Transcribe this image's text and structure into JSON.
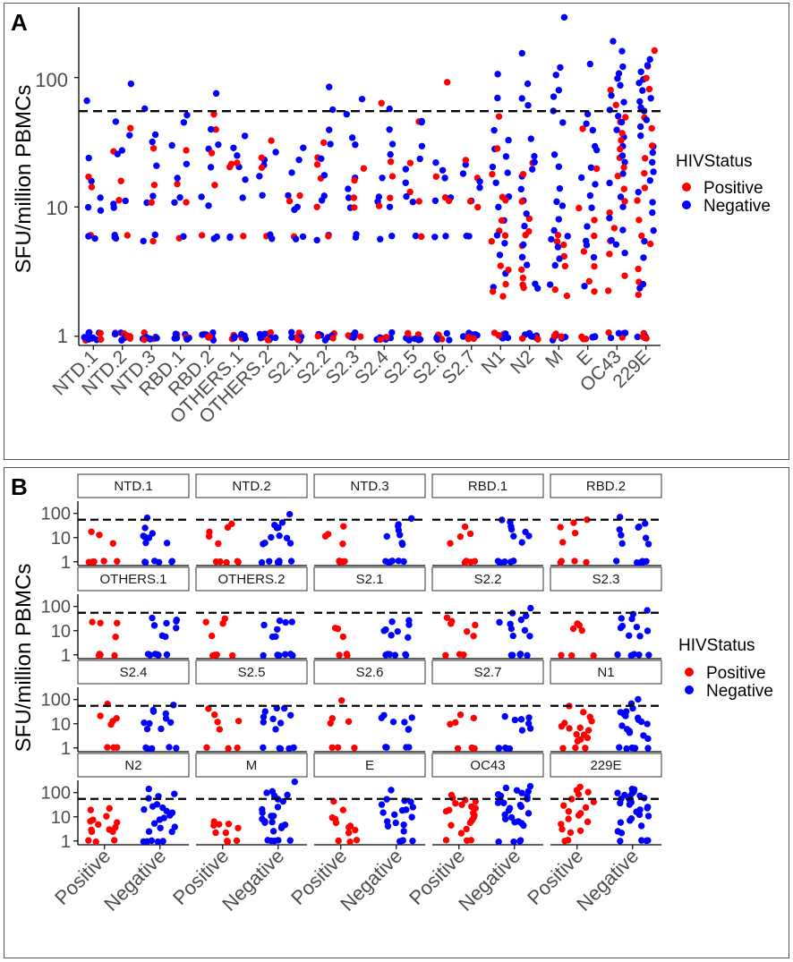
{
  "colors": {
    "positive": "#ff0000",
    "negative": "#0000ff",
    "refline": "#000000",
    "axis": "#000000",
    "strip_fill": "#ffffff",
    "strip_border": "#333333"
  },
  "panel_a": {
    "letter": "A",
    "ylabel": "SFU/million PBMCs",
    "y_ticks": [
      "1",
      "10",
      "100"
    ],
    "legend_title": "HIVStatus",
    "legend_items": [
      "Positive",
      "Negative"
    ]
  },
  "panel_b": {
    "letter": "B",
    "ylabel": "SFU/million PBMCs",
    "y_ticks": [
      "1",
      "10",
      "100"
    ],
    "x_ticks": [
      "Positive",
      "Negative"
    ],
    "legend_title": "HIVStatus",
    "legend_items": [
      "Positive",
      "Negative"
    ]
  },
  "chart_data": [
    {
      "type": "scatter",
      "panel": "A",
      "title": "",
      "xlabel": "",
      "ylabel": "SFU/million PBMCs",
      "y_scale": "log10",
      "ylim": [
        0.85,
        350
      ],
      "yticks": [
        1,
        10,
        100
      ],
      "reference_line": 55,
      "categories": [
        "NTD.1",
        "NTD.2",
        "NTD.3",
        "RBD.1",
        "RBD.2",
        "OTHERS.1",
        "OTHERS.2",
        "S2.1",
        "S2.2",
        "S2.3",
        "S2.4",
        "S2.5",
        "S2.6",
        "S2.7",
        "N1",
        "N2",
        "M",
        "E",
        "OC43",
        "229E"
      ],
      "legend": {
        "title": "HIVStatus",
        "position": "right"
      },
      "series": [
        {
          "name": "Positive",
          "points": {
            "NTD.1": [
              17,
              14,
              6,
              1,
              1,
              1,
              1,
              1
            ],
            "NTD.2": [
              40,
              16,
              11,
              27,
              6,
              1,
              1,
              1,
              1,
              1
            ],
            "NTD.3": [
              28,
              15,
              11,
              5.5,
              1,
              1,
              1,
              1
            ],
            "RBD.1": [
              27,
              15,
              11,
              5.6,
              1,
              1,
              1,
              1
            ],
            "RBD.2": [
              52,
              40,
              26,
              15,
              6,
              1,
              1,
              1,
              1
            ],
            "OTHERS.1": [
              22,
              20,
              21,
              6,
              1,
              1,
              1,
              1
            ],
            "OTHERS.2": [
              32,
              24,
              20,
              6,
              1,
              1,
              1,
              1
            ],
            "S2.1": [
              11,
              12,
              6,
              1,
              1,
              1
            ],
            "S2.2": [
              32,
              24,
              21,
              17,
              10,
              6,
              1,
              1,
              1
            ],
            "S2.3": [
              20,
              16,
              12,
              10,
              1,
              1,
              1
            ],
            "S2.4": [
              64,
              22,
              17,
              12,
              10,
              1,
              1,
              1
            ],
            "S2.5": [
              45,
              22,
              13,
              11,
              6,
              1,
              1,
              1
            ],
            "S2.6": [
              90,
              17,
              12,
              11,
              1,
              1,
              1
            ],
            "S2.7": [
              23,
              17,
              11,
              10,
              1,
              1,
              1
            ],
            "N1": [
              50,
              28,
              18,
              12,
              11,
              8,
              6.5,
              6,
              5.5,
              3.5,
              3.3,
              2.5,
              2.2,
              2.0,
              1,
              1,
              1
            ],
            "N2": [
              22,
              18,
              11,
              8,
              6.6,
              6,
              5,
              4,
              3.2,
              2.8,
              2.5,
              2.4,
              1,
              1,
              1
            ],
            "M": [
              6,
              5.5,
              5,
              4.2,
              3.5,
              2.3,
              2.1,
              1,
              1,
              1
            ],
            "E": [
              40,
              20,
              10,
              8,
              6,
              4.5,
              3.5,
              2.6,
              2.2,
              1,
              1,
              1
            ],
            "OC43": [
              80,
              60,
              50,
              45,
              38,
              32,
              28,
              24,
              20,
              17,
              14,
              11,
              9,
              7,
              5.5,
              4.3,
              3.0,
              2.2,
              1,
              1,
              1
            ],
            "229E": [
              160,
              120,
              100,
              80,
              50,
              40,
              30,
              24,
              18,
              14,
              11,
              8,
              6,
              5.2,
              3.3,
              2.6,
              2.1,
              1,
              1,
              1
            ]
          }
        },
        {
          "name": "Negative",
          "points": {
            "NTD.1": [
              66,
              24,
              16,
              12,
              10,
              9.5,
              6,
              5.6,
              1,
              1,
              1,
              1,
              1,
              1,
              1
            ],
            "NTD.2": [
              88,
              45,
              35,
              28,
              26,
              11,
              10.5,
              10,
              6,
              5.8,
              5.6,
              1,
              1,
              1,
              1,
              1,
              1
            ],
            "NTD.3": [
              57,
              37,
              32,
              21,
              12,
              11,
              6,
              5.5,
              1,
              1,
              1,
              1,
              1,
              1
            ],
            "RBD.1": [
              52,
              45,
              30,
              21,
              17,
              12,
              11,
              6,
              1,
              1,
              1,
              1,
              1,
              1
            ],
            "RBD.2": [
              76,
              40,
              30,
              28,
              20,
              12,
              10,
              6,
              5.8,
              1,
              1,
              1,
              1,
              1,
              1
            ],
            "OTHERS.1": [
              35,
              28,
              25,
              20,
              16,
              12,
              6,
              5.8,
              1,
              1,
              1,
              1,
              1,
              1
            ],
            "OTHERS.2": [
              26,
              23,
              21,
              17,
              12,
              6,
              5.8,
              1,
              1,
              1,
              1,
              1,
              1
            ],
            "S2.1": [
              28,
              23,
              18,
              12,
              10,
              9.5,
              6,
              5.6,
              1,
              1,
              1,
              1,
              1,
              1
            ],
            "S2.2": [
              84,
              57,
              40,
              30,
              24,
              18,
              12,
              11,
              6,
              5.6,
              1,
              1,
              1,
              1,
              1
            ],
            "S2.3": [
              67,
              52,
              34,
              30,
              17,
              14,
              12,
              10,
              6,
              5.8,
              1,
              1,
              1,
              1,
              1
            ],
            "S2.4": [
              57,
              40,
              30,
              25,
              17,
              12,
              11,
              10,
              6,
              5.6,
              1,
              1,
              1,
              1,
              1
            ],
            "S2.5": [
              47,
              45,
              30,
              24,
              20,
              15,
              12,
              11,
              6,
              1,
              1,
              1,
              1,
              1
            ],
            "S2.6": [
              22,
              19,
              17,
              12,
              11,
              6,
              5.8,
              1,
              1,
              1,
              1,
              1
            ],
            "S2.7": [
              21,
              18,
              16,
              14,
              11,
              6,
              5.8,
              1,
              1,
              1,
              1,
              1
            ],
            "N1": [
              108,
              70,
              40,
              33,
              28,
              25,
              20,
              18,
              15,
              12,
              10,
              8,
              6,
              5.2,
              4.2,
              3,
              2.4,
              1,
              1,
              1,
              1,
              1
            ],
            "N2": [
              155,
              90,
              70,
              62,
              33,
              25,
              22,
              20,
              17,
              14,
              11,
              9,
              7,
              5,
              4,
              3.5,
              2.6,
              2.4,
              1,
              1,
              1,
              1,
              1
            ],
            "M": [
              290,
              120,
              105,
              80,
              70,
              55,
              45,
              25,
              20,
              14,
              11,
              10,
              8,
              6.5,
              6,
              5.5,
              4.8,
              4.0,
              3.5,
              2.5,
              1,
              1,
              1,
              1,
              1
            ],
            "E": [
              130,
              52,
              45,
              40,
              30,
              27,
              20,
              17,
              15,
              12,
              10,
              7,
              5.5,
              5,
              4,
              2.5,
              1,
              1,
              1,
              1
            ],
            "OC43": [
              190,
              160,
              120,
              110,
              100,
              85,
              72,
              65,
              55,
              50,
              45,
              40,
              35,
              30,
              25,
              22,
              18,
              15,
              12,
              10,
              8,
              6.5,
              5.5,
              5,
              4.5,
              1,
              1,
              1,
              1
            ],
            "229E": [
              140,
              125,
              110,
              95,
              90,
              80,
              70,
              65,
              60,
              55,
              48,
              42,
              36,
              30,
              26,
              22,
              19,
              16,
              13,
              11,
              9,
              6.5,
              5.5,
              4,
              2.5,
              2.3,
              1,
              1,
              1,
              1
            ]
          }
        }
      ]
    },
    {
      "type": "scatter",
      "panel": "B",
      "title": "",
      "xlabel": "",
      "ylabel": "SFU/million PBMCs",
      "y_scale": "log10",
      "ylim": [
        0.9,
        250
      ],
      "yticks": [
        1,
        10,
        100
      ],
      "reference_line": 55,
      "x_categories": [
        "Positive",
        "Negative"
      ],
      "facets": [
        "NTD.1",
        "NTD.2",
        "NTD.3",
        "RBD.1",
        "RBD.2",
        "OTHERS.1",
        "OTHERS.2",
        "S2.1",
        "S2.2",
        "S2.3",
        "S2.4",
        "S2.5",
        "S2.6",
        "S2.7",
        "N1",
        "N2",
        "M",
        "E",
        "OC43",
        "229E"
      ],
      "legend": {
        "title": "HIVStatus",
        "position": "right"
      },
      "same_data_as": "A"
    }
  ]
}
